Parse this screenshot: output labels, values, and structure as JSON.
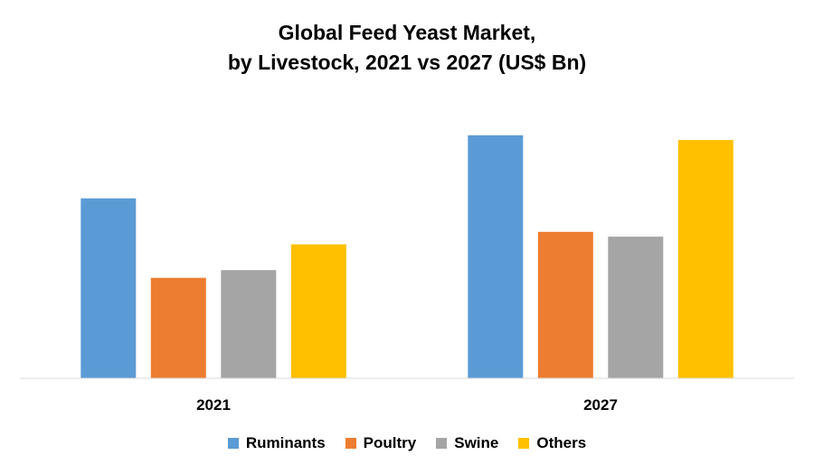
{
  "chart_data": {
    "type": "bar",
    "title_line1": "Global Feed Yeast Market,",
    "title_line2": "by Livestock, 2021 vs 2027 (US$ Bn)",
    "categories": [
      "2021",
      "2027"
    ],
    "series": [
      {
        "name": "Ruminants",
        "color": "#5B9BD5",
        "values": [
          1.88,
          2.54
        ]
      },
      {
        "name": "Poultry",
        "color": "#ED7D31",
        "values": [
          1.05,
          1.53
        ]
      },
      {
        "name": "Swine",
        "color": "#A5A5A5",
        "values": [
          1.13,
          1.48
        ]
      },
      {
        "name": "Others",
        "color": "#FFC000",
        "values": [
          1.4,
          2.49
        ]
      }
    ],
    "ylim": [
      0,
      3
    ],
    "xlabel": "",
    "ylabel": "",
    "grid": false,
    "legend": "bottom"
  }
}
